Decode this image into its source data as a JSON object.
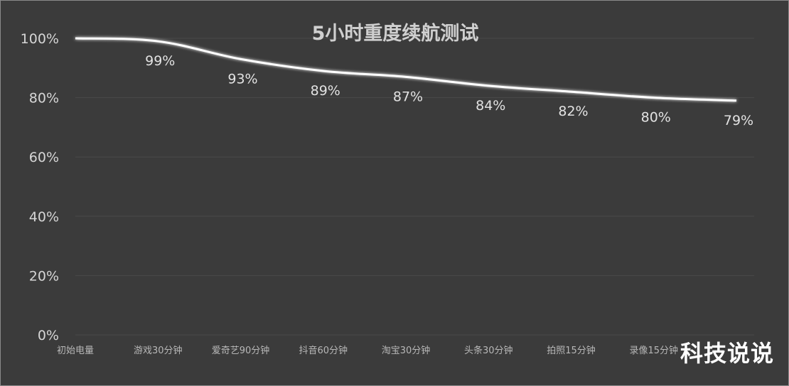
{
  "chart_data": {
    "type": "line",
    "title": "5小时重度续航测试",
    "categories": [
      "初始电量",
      "游戏30分钟",
      "爱奇艺90分钟",
      "抖音60分钟",
      "淘宝30分钟",
      "头条30分钟",
      "拍照15分钟",
      "录像15分钟",
      ""
    ],
    "series": [
      {
        "values": [
          100,
          99,
          93,
          89,
          87,
          84,
          82,
          80,
          79
        ]
      }
    ],
    "data_labels": [
      "",
      "99%",
      "93%",
      "89%",
      "87%",
      "84%",
      "82%",
      "80%",
      "79%"
    ],
    "ylim": [
      0,
      100
    ],
    "yticks": [
      "0%",
      "20%",
      "40%",
      "60%",
      "80%",
      "100%"
    ],
    "ytick_values": [
      0,
      20,
      40,
      60,
      80,
      100
    ],
    "grid": true,
    "line_color": "#ffffff",
    "background": "#3b3b3b"
  },
  "watermark": "科技说说"
}
